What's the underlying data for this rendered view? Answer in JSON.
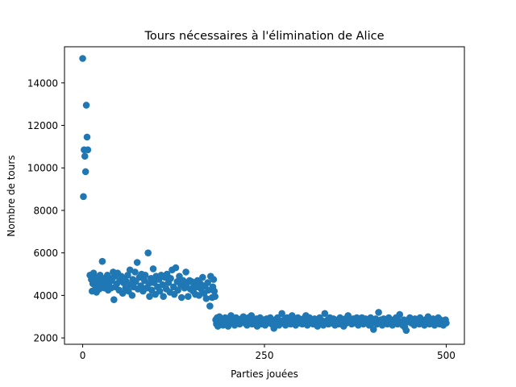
{
  "chart_data": {
    "type": "scatter",
    "title": "Tours nécessaires à l'élimination de Alice",
    "xlabel": "Parties jouées",
    "ylabel": "Nombre de tours",
    "xlim": [
      -25,
      525
    ],
    "ylim": [
      1700,
      15700
    ],
    "xticks": [
      0,
      250,
      500
    ],
    "yticks": [
      2000,
      4000,
      6000,
      8000,
      10000,
      12000,
      14000
    ],
    "grid": false,
    "legend": "none",
    "marker_color": "#1f77b4",
    "series": [
      {
        "points": [
          [
            0,
            15150
          ],
          [
            1,
            8650
          ],
          [
            2,
            10850
          ],
          [
            3,
            10550
          ],
          [
            4,
            9820
          ],
          [
            5,
            12950
          ],
          [
            6,
            11450
          ],
          [
            7,
            10850
          ],
          [
            10,
            4950
          ],
          [
            12,
            4750
          ],
          [
            13,
            4200
          ],
          [
            14,
            4550
          ],
          [
            15,
            5050
          ],
          [
            16,
            4800
          ],
          [
            18,
            4400
          ],
          [
            19,
            4150
          ],
          [
            20,
            4650
          ],
          [
            22,
            4850
          ],
          [
            23,
            4300
          ],
          [
            24,
            4950
          ],
          [
            25,
            4600
          ],
          [
            26,
            4450
          ],
          [
            27,
            5600
          ],
          [
            28,
            4800
          ],
          [
            30,
            4350
          ],
          [
            32,
            4650
          ],
          [
            34,
            4950
          ],
          [
            35,
            4250
          ],
          [
            36,
            4500
          ],
          [
            38,
            4800
          ],
          [
            39,
            4350
          ],
          [
            40,
            4700
          ],
          [
            42,
            5100
          ],
          [
            43,
            3800
          ],
          [
            44,
            4900
          ],
          [
            45,
            4400
          ],
          [
            47,
            4550
          ],
          [
            48,
            5050
          ],
          [
            50,
            4250
          ],
          [
            51,
            4700
          ],
          [
            53,
            4900
          ],
          [
            55,
            4100
          ],
          [
            56,
            4600
          ],
          [
            57,
            4800
          ],
          [
            59,
            4350
          ],
          [
            60,
            4650
          ],
          [
            62,
            4950
          ],
          [
            63,
            4200
          ],
          [
            65,
            5200
          ],
          [
            66,
            4500
          ],
          [
            68,
            4000
          ],
          [
            69,
            4750
          ],
          [
            70,
            4400
          ],
          [
            72,
            5100
          ],
          [
            73,
            4650
          ],
          [
            75,
            5550
          ],
          [
            76,
            4300
          ],
          [
            78,
            4850
          ],
          [
            80,
            4450
          ],
          [
            81,
            5000
          ],
          [
            83,
            4200
          ],
          [
            85,
            4700
          ],
          [
            86,
            4950
          ],
          [
            88,
            4350
          ],
          [
            90,
            6000
          ],
          [
            91,
            4550
          ],
          [
            92,
            3950
          ],
          [
            94,
            4800
          ],
          [
            95,
            4250
          ],
          [
            97,
            5250
          ],
          [
            98,
            4600
          ],
          [
            100,
            4050
          ],
          [
            101,
            4900
          ],
          [
            103,
            4400
          ],
          [
            105,
            4750
          ],
          [
            106,
            4200
          ],
          [
            108,
            4950
          ],
          [
            110,
            4500
          ],
          [
            111,
            3950
          ],
          [
            113,
            4850
          ],
          [
            115,
            4300
          ],
          [
            116,
            5000
          ],
          [
            118,
            4600
          ],
          [
            120,
            4150
          ],
          [
            121,
            4800
          ],
          [
            123,
            5200
          ],
          [
            125,
            4400
          ],
          [
            126,
            4050
          ],
          [
            128,
            5300
          ],
          [
            130,
            4650
          ],
          [
            131,
            4250
          ],
          [
            133,
            4900
          ],
          [
            135,
            4500
          ],
          [
            136,
            3900
          ],
          [
            138,
            4700
          ],
          [
            140,
            4350
          ],
          [
            142,
            5100
          ],
          [
            143,
            4550
          ],
          [
            145,
            3950
          ],
          [
            147,
            4700
          ],
          [
            148,
            4300
          ],
          [
            150,
            4650
          ],
          [
            152,
            4200
          ],
          [
            153,
            4500
          ],
          [
            155,
            4050
          ],
          [
            157,
            4400
          ],
          [
            158,
            4700
          ],
          [
            160,
            4000
          ],
          [
            162,
            4550
          ],
          [
            163,
            4300
          ],
          [
            165,
            4850
          ],
          [
            167,
            4100
          ],
          [
            168,
            4450
          ],
          [
            170,
            3850
          ],
          [
            172,
            4600
          ],
          [
            173,
            4250
          ],
          [
            175,
            3500
          ],
          [
            176,
            4900
          ],
          [
            178,
            3900
          ],
          [
            179,
            4400
          ],
          [
            180,
            4750
          ],
          [
            181,
            4200
          ],
          [
            182,
            3950
          ],
          [
            183,
            2850
          ],
          [
            184,
            2650
          ],
          [
            185,
            2950
          ],
          [
            186,
            2550
          ],
          [
            187,
            2750
          ],
          [
            188,
            3000
          ],
          [
            190,
            2700
          ],
          [
            191,
            2850
          ],
          [
            193,
            2600
          ],
          [
            194,
            2800
          ],
          [
            196,
            2950
          ],
          [
            197,
            2650
          ],
          [
            199,
            2750
          ],
          [
            200,
            2550
          ],
          [
            202,
            2900
          ],
          [
            204,
            3050
          ],
          [
            205,
            2700
          ],
          [
            207,
            2800
          ],
          [
            209,
            2600
          ],
          [
            211,
            2950
          ],
          [
            212,
            2750
          ],
          [
            214,
            2850
          ],
          [
            216,
            2650
          ],
          [
            218,
            2900
          ],
          [
            219,
            2800
          ],
          [
            221,
            3000
          ],
          [
            223,
            2700
          ],
          [
            225,
            2850
          ],
          [
            226,
            2600
          ],
          [
            228,
            2950
          ],
          [
            230,
            2750
          ],
          [
            232,
            3050
          ],
          [
            233,
            2650
          ],
          [
            235,
            2850
          ],
          [
            237,
            2700
          ],
          [
            239,
            2900
          ],
          [
            240,
            2550
          ],
          [
            242,
            2800
          ],
          [
            244,
            2950
          ],
          [
            246,
            2650
          ],
          [
            247,
            2750
          ],
          [
            249,
            2850
          ],
          [
            251,
            2600
          ],
          [
            253,
            2900
          ],
          [
            254,
            2700
          ],
          [
            256,
            2800
          ],
          [
            258,
            2950
          ],
          [
            260,
            2650
          ],
          [
            261,
            2750
          ],
          [
            263,
            2450
          ],
          [
            265,
            2850
          ],
          [
            267,
            2700
          ],
          [
            268,
            2950
          ],
          [
            270,
            2600
          ],
          [
            272,
            2800
          ],
          [
            274,
            3150
          ],
          [
            275,
            2700
          ],
          [
            277,
            2850
          ],
          [
            279,
            2600
          ],
          [
            281,
            2950
          ],
          [
            282,
            2750
          ],
          [
            284,
            2850
          ],
          [
            286,
            2650
          ],
          [
            288,
            3050
          ],
          [
            289,
            2700
          ],
          [
            291,
            2900
          ],
          [
            293,
            2600
          ],
          [
            295,
            2800
          ],
          [
            296,
            2950
          ],
          [
            298,
            2700
          ],
          [
            300,
            2850
          ],
          [
            302,
            2650
          ],
          [
            303,
            2900
          ],
          [
            305,
            2750
          ],
          [
            307,
            3050
          ],
          [
            309,
            2600
          ],
          [
            310,
            2800
          ],
          [
            312,
            2950
          ],
          [
            314,
            2700
          ],
          [
            316,
            2850
          ],
          [
            317,
            2650
          ],
          [
            319,
            2900
          ],
          [
            321,
            2750
          ],
          [
            323,
            2550
          ],
          [
            324,
            2850
          ],
          [
            326,
            2950
          ],
          [
            328,
            2700
          ],
          [
            330,
            2800
          ],
          [
            331,
            2600
          ],
          [
            333,
            3150
          ],
          [
            335,
            2750
          ],
          [
            337,
            2850
          ],
          [
            338,
            2650
          ],
          [
            340,
            2950
          ],
          [
            342,
            2700
          ],
          [
            344,
            2800
          ],
          [
            345,
            2900
          ],
          [
            347,
            2600
          ],
          [
            349,
            2750
          ],
          [
            351,
            2850
          ],
          [
            352,
            2650
          ],
          [
            354,
            2950
          ],
          [
            356,
            2750
          ],
          [
            358,
            2850
          ],
          [
            359,
            2550
          ],
          [
            361,
            2900
          ],
          [
            363,
            2700
          ],
          [
            365,
            3050
          ],
          [
            366,
            2750
          ],
          [
            368,
            2850
          ],
          [
            370,
            2650
          ],
          [
            372,
            2900
          ],
          [
            373,
            2700
          ],
          [
            375,
            2800
          ],
          [
            377,
            2950
          ],
          [
            379,
            2600
          ],
          [
            380,
            2850
          ],
          [
            382,
            2750
          ],
          [
            384,
            2950
          ],
          [
            386,
            2650
          ],
          [
            387,
            2800
          ],
          [
            389,
            2900
          ],
          [
            391,
            2700
          ],
          [
            393,
            2850
          ],
          [
            394,
            2600
          ],
          [
            396,
            2950
          ],
          [
            398,
            2700
          ],
          [
            400,
            2400
          ],
          [
            401,
            2800
          ],
          [
            403,
            2900
          ],
          [
            405,
            2650
          ],
          [
            407,
            3200
          ],
          [
            408,
            2750
          ],
          [
            410,
            2850
          ],
          [
            412,
            2600
          ],
          [
            414,
            2900
          ],
          [
            415,
            2750
          ],
          [
            417,
            2850
          ],
          [
            419,
            2650
          ],
          [
            421,
            2950
          ],
          [
            422,
            2700
          ],
          [
            424,
            2800
          ],
          [
            426,
            2600
          ],
          [
            428,
            2850
          ],
          [
            429,
            2700
          ],
          [
            431,
            2950
          ],
          [
            433,
            2650
          ],
          [
            435,
            2800
          ],
          [
            436,
            3100
          ],
          [
            438,
            2750
          ],
          [
            440,
            2600
          ],
          [
            442,
            2850
          ],
          [
            443,
            2500
          ],
          [
            445,
            2350
          ],
          [
            447,
            2750
          ],
          [
            449,
            2850
          ],
          [
            450,
            2950
          ],
          [
            452,
            2700
          ],
          [
            454,
            2800
          ],
          [
            456,
            2600
          ],
          [
            457,
            2900
          ],
          [
            459,
            2750
          ],
          [
            461,
            2850
          ],
          [
            463,
            2650
          ],
          [
            464,
            2950
          ],
          [
            466,
            2700
          ],
          [
            468,
            2800
          ],
          [
            470,
            2600
          ],
          [
            471,
            2850
          ],
          [
            473,
            2750
          ],
          [
            475,
            3000
          ],
          [
            477,
            2650
          ],
          [
            478,
            2800
          ],
          [
            480,
            2700
          ],
          [
            482,
            2900
          ],
          [
            484,
            2600
          ],
          [
            485,
            2800
          ],
          [
            487,
            2750
          ],
          [
            489,
            2950
          ],
          [
            491,
            2650
          ],
          [
            492,
            2850
          ],
          [
            494,
            2700
          ],
          [
            496,
            2600
          ],
          [
            497,
            2800
          ],
          [
            498,
            2750
          ],
          [
            499,
            2850
          ],
          [
            500,
            2700
          ]
        ]
      }
    ]
  }
}
